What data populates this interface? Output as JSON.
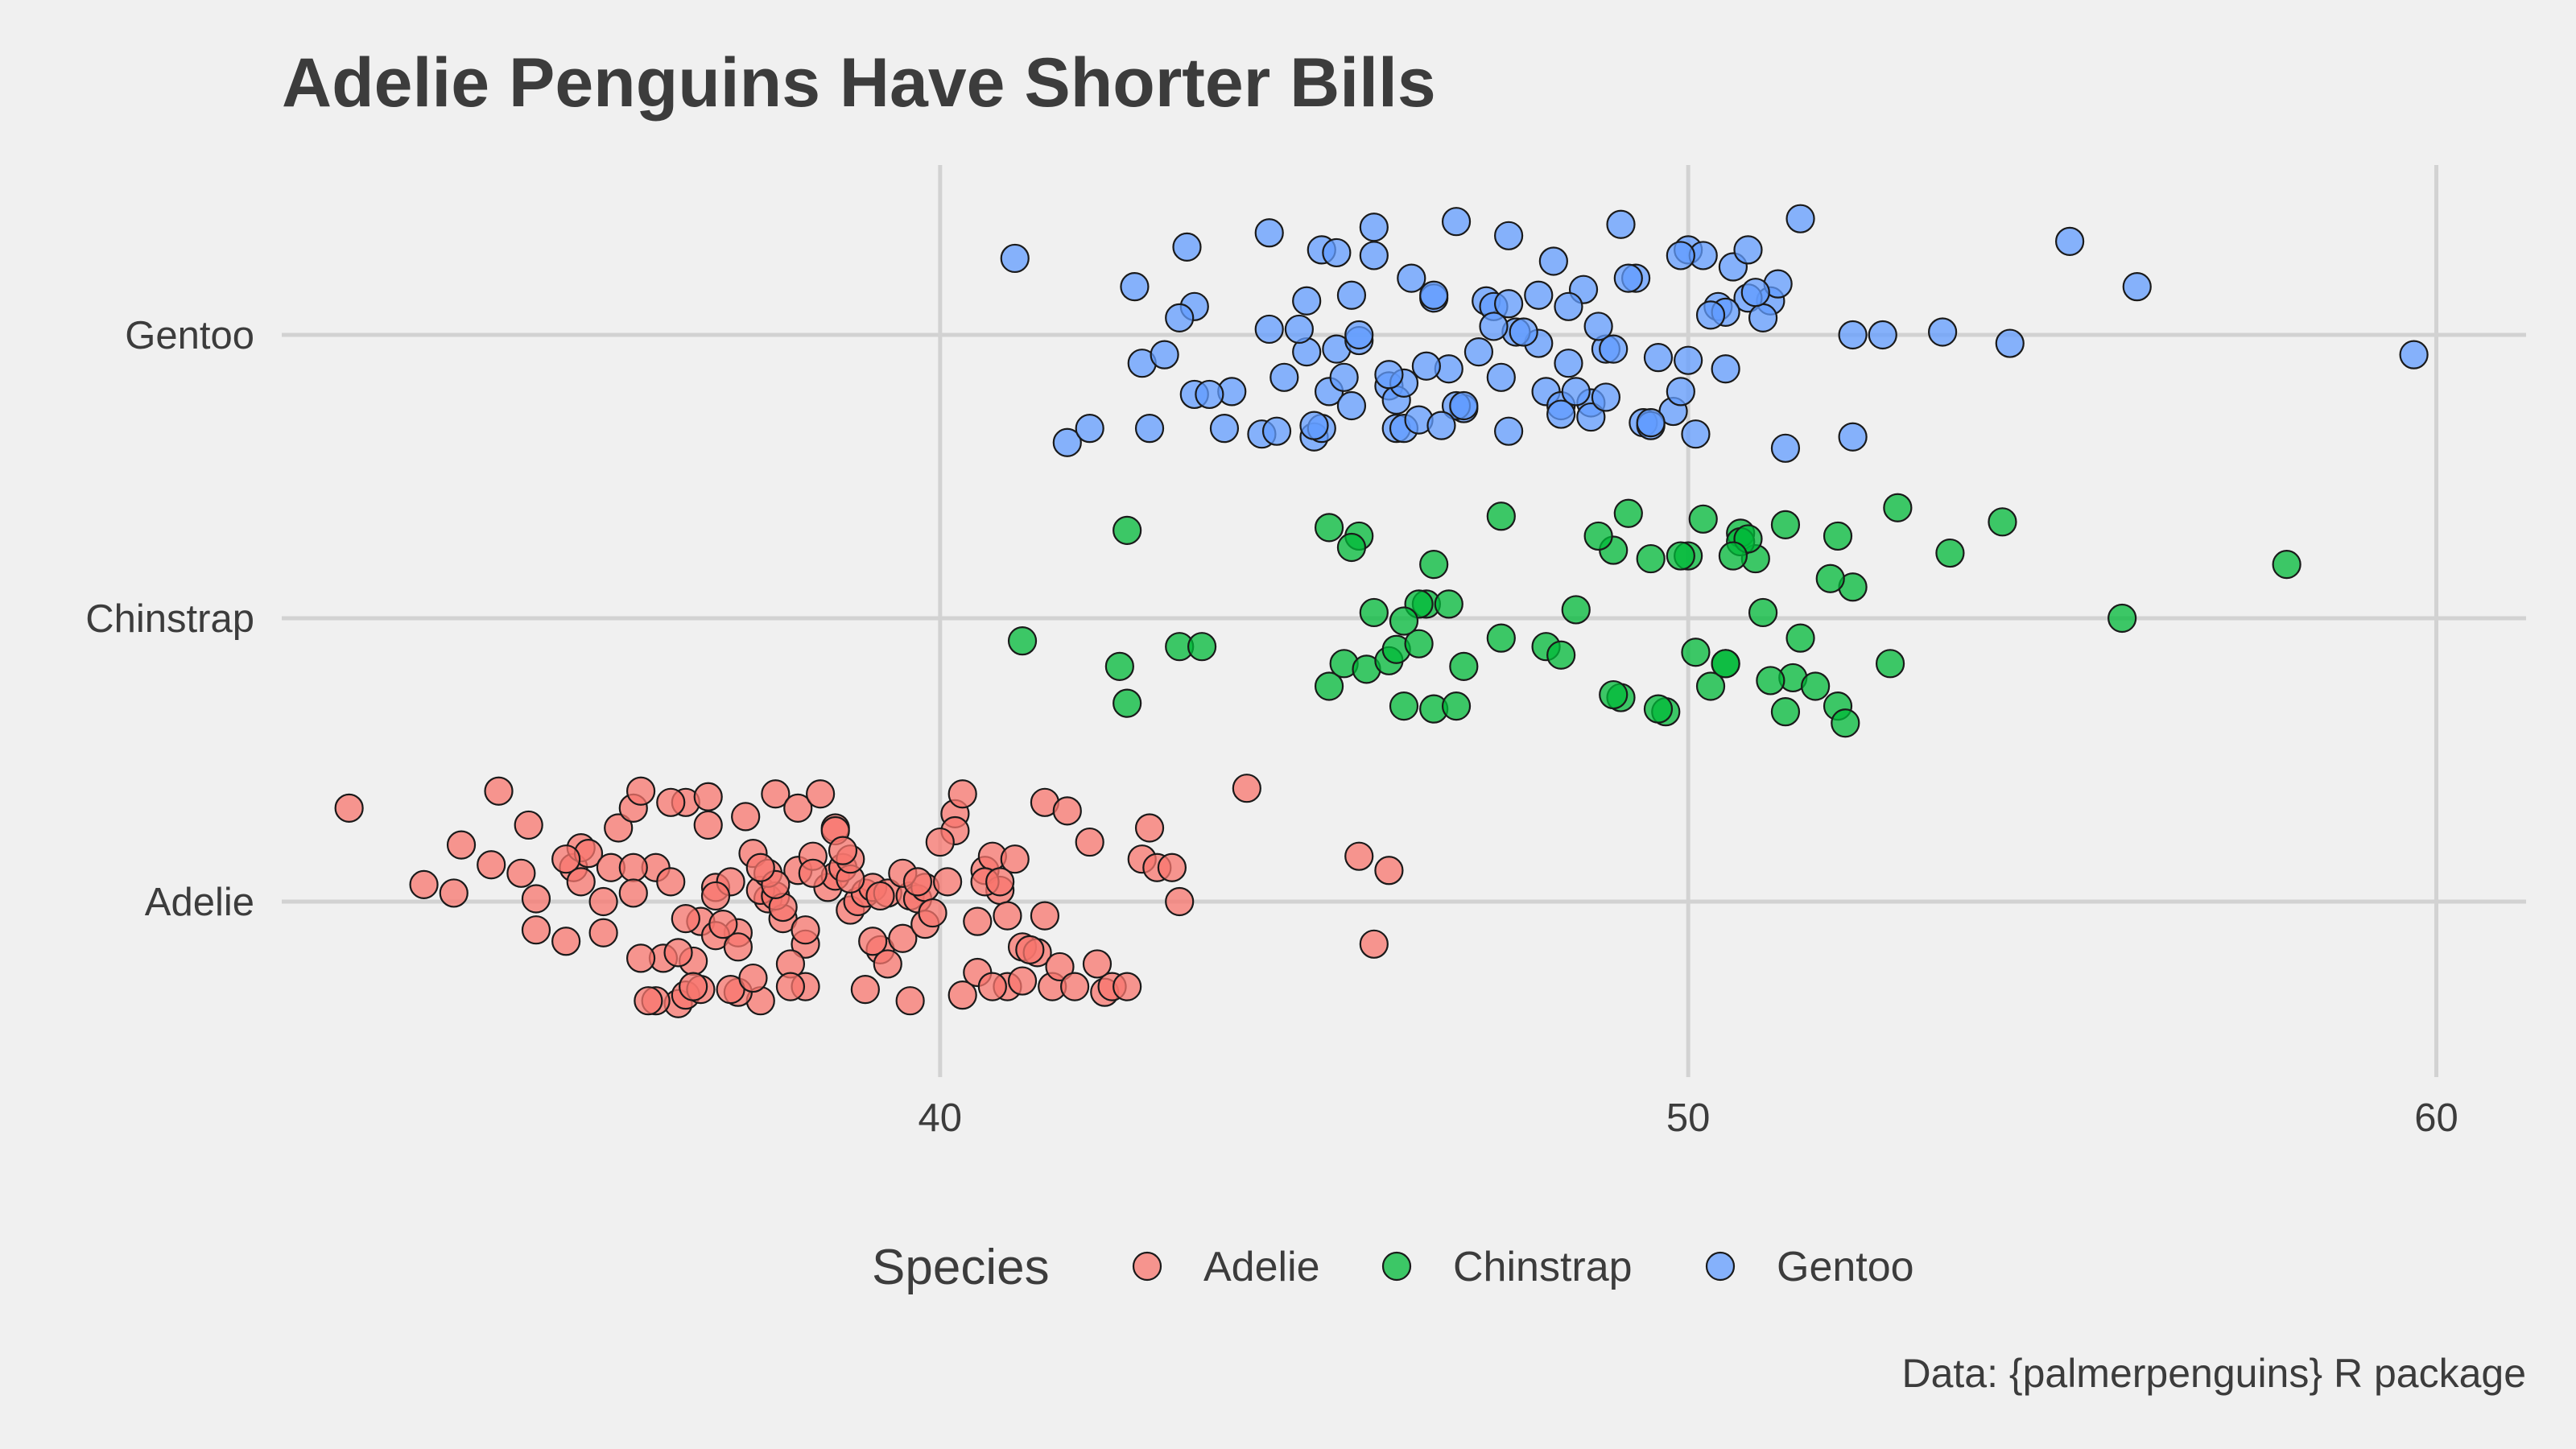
{
  "chart_data": {
    "type": "scatter",
    "title": "Adelie Penguins Have Shorter Bills",
    "caption": "Data: {palmerpenguins} R package",
    "xlabel": "",
    "ylabel": "",
    "xlim": [
      31.2,
      61.2
    ],
    "x_ticks": [
      40,
      50,
      60
    ],
    "categories": [
      "Adelie",
      "Chinstrap",
      "Gentoo"
    ],
    "grid": true,
    "legend": {
      "title": "Species",
      "position": "bottom",
      "entries": [
        "Adelie",
        "Chinstrap",
        "Gentoo"
      ]
    },
    "series": [
      {
        "name": "Adelie",
        "color": "#f8766d",
        "values": [
          32.1,
          33.1,
          33.5,
          34.0,
          34.1,
          34.4,
          34.5,
          34.6,
          35.0,
          35.1,
          35.2,
          35.3,
          35.5,
          35.6,
          35.7,
          35.9,
          36.0,
          36.2,
          36.4,
          36.5,
          36.6,
          36.7,
          36.8,
          36.9,
          37.0,
          37.2,
          37.3,
          37.5,
          37.6,
          37.7,
          37.8,
          37.9,
          38.1,
          38.2,
          38.3,
          38.5,
          38.6,
          38.7,
          38.8,
          38.9,
          39.0,
          39.1,
          39.2,
          39.3,
          39.5,
          39.6,
          39.7,
          39.8,
          40.1,
          40.2,
          40.3,
          40.5,
          40.6,
          40.7,
          40.8,
          40.9,
          41.0,
          41.1,
          41.3,
          41.4,
          41.5,
          41.6,
          41.8,
          42.0,
          42.2,
          42.3,
          42.5,
          42.7,
          42.9,
          43.1,
          43.2,
          44.1,
          45.6,
          45.8,
          46.0,
          33.6,
          34.6,
          35.0,
          35.5,
          35.9,
          36.2,
          36.4,
          36.6,
          36.8,
          37.0,
          37.3,
          37.6,
          37.8,
          38.0,
          38.2,
          38.6,
          38.8,
          39.0,
          39.2,
          39.6,
          39.8,
          40.3,
          40.6,
          40.9,
          41.1,
          42.1,
          42.8,
          35.9,
          36.6,
          37.2,
          37.7,
          38.1,
          38.6,
          39.5,
          40.2,
          40.8,
          41.4,
          36.3,
          37.0,
          37.5,
          38.0,
          38.8,
          39.7,
          40.5,
          36.0,
          36.7,
          37.3,
          37.9,
          39.1,
          40.0,
          41.2,
          36.5,
          37.4,
          38.4,
          39.3,
          40.7,
          37.1,
          38.3,
          39.9,
          37.8,
          36.9,
          38.7,
          38.2,
          37.6,
          41.7,
          35.2,
          36.1
        ],
        "jitter": [
          0.33,
          0.06,
          0.03,
          0.13,
          0.39,
          0.1,
          0.27,
          0.01,
          -0.14,
          0.12,
          0.19,
          0.17,
          -0.11,
          0.12,
          0.26,
          0.33,
          0.39,
          0.12,
          0.07,
          -0.36,
          0.35,
          -0.21,
          -0.07,
          0.37,
          0.05,
          0.07,
          -0.11,
          0.17,
          -0.35,
          0.01,
          0.38,
          -0.06,
          0.11,
          -0.15,
          0.16,
          0.05,
          0.09,
          0.12,
          -0.03,
          0.0,
          0.03,
          0.05,
          -0.17,
          0.03,
          -0.13,
          0.02,
          0.01,
          0.05,
          0.07,
          0.31,
          0.38,
          -0.07,
          0.11,
          0.16,
          0.04,
          -0.05,
          0.15,
          -0.16,
          -0.18,
          0.35,
          -0.3,
          -0.23,
          -0.3,
          0.21,
          -0.32,
          -0.3,
          -0.3,
          0.15,
          0.12,
          0.12,
          0.0,
          0.4,
          0.16,
          -0.15,
          0.11,
          0.2,
          -0.1,
          0.15,
          0.0,
          0.12,
          -0.35,
          0.35,
          -0.33,
          -0.31,
          0.02,
          -0.32,
          0.04,
          0.02,
          -0.22,
          -0.3,
          0.26,
          0.08,
          -0.31,
          0.02,
          -0.35,
          -0.08,
          -0.33,
          0.07,
          -0.3,
          -0.28,
          -0.22,
          0.26,
          0.03,
          -0.06,
          -0.31,
          0.1,
          0.33,
          0.25,
          0.1,
          0.25,
          0.07,
          -0.05,
          -0.2,
          -0.12,
          -0.27,
          -0.3,
          0.15,
          0.07,
          -0.25,
          -0.2,
          -0.3,
          -0.16,
          -0.02,
          -0.14,
          0.21,
          -0.17,
          -0.18,
          0.3,
          0.38,
          -0.22,
          -0.3,
          -0.08,
          0.1,
          -0.04,
          0.06,
          0.27,
          0.18,
          -0.1,
          0.12,
          0.32,
          0.07,
          -0.35,
          -0.32,
          0.05
        ]
      },
      {
        "name": "Chinstrap",
        "color": "#00ba38",
        "values": [
          42.5,
          45.2,
          45.6,
          47.5,
          49.2,
          50.2,
          50.7,
          51.3,
          52.0,
          52.8,
          54.2,
          58.0,
          42.4,
          42.5,
          43.2,
          43.5,
          45.2,
          45.4,
          45.7,
          46.0,
          46.1,
          46.4,
          46.5,
          46.6,
          46.8,
          47.0,
          48.1,
          48.5,
          49.0,
          49.5,
          49.7,
          50.0,
          50.5,
          50.9,
          51.0,
          51.4,
          51.5,
          52.0,
          52.2,
          52.7,
          53.5,
          55.8,
          41.1,
          45.5,
          46.2,
          46.6,
          47.5,
          48.3,
          49.1,
          49.9,
          50.3,
          50.7,
          51.3,
          51.9,
          52.1,
          45.8,
          46.4,
          46.9,
          49.6,
          50.8,
          51.7,
          49.0,
          50.1,
          48.8,
          50.5,
          46.2,
          51.1,
          50.6
        ],
        "jitter": [
          0.31,
          0.32,
          0.29,
          0.36,
          0.37,
          0.35,
          0.3,
          0.33,
          0.29,
          0.39,
          0.34,
          0.19,
          -0.17,
          -0.3,
          -0.1,
          -0.1,
          -0.24,
          -0.16,
          -0.18,
          -0.15,
          -0.11,
          -0.09,
          0.05,
          0.19,
          0.05,
          -0.17,
          -0.1,
          0.03,
          0.24,
          0.21,
          -0.33,
          0.22,
          -0.16,
          0.21,
          0.02,
          -0.21,
          -0.07,
          -0.31,
          0.11,
          -0.16,
          0.23,
          0.0,
          -0.08,
          0.25,
          -0.31,
          -0.32,
          -0.07,
          -0.13,
          -0.28,
          0.22,
          -0.24,
          0.27,
          -0.33,
          0.14,
          -0.37,
          0.02,
          0.05,
          -0.31,
          -0.32,
          0.28,
          -0.24,
          -0.27,
          -0.12,
          0.29,
          -0.16,
          -0.01,
          -0.22,
          0.22
        ]
      },
      {
        "name": "Gentoo",
        "color": "#619cff",
        "values": [
          41.0,
          42.6,
          43.3,
          44.4,
          45.1,
          45.8,
          46.9,
          47.6,
          48.2,
          49.1,
          50.0,
          51.5,
          55.1,
          56.0,
          43.4,
          44.9,
          45.5,
          46.3,
          47.3,
          48.6,
          49.3,
          50.4,
          51.1,
          43.2,
          44.4,
          45.3,
          46.0,
          46.8,
          47.5,
          48.4,
          49.6,
          50.5,
          52.2,
          52.6,
          53.4,
          54.3,
          59.7,
          42.7,
          43.0,
          44.9,
          45.6,
          46.5,
          47.2,
          48.0,
          48.9,
          50.0,
          50.8,
          43.4,
          44.6,
          45.2,
          46.1,
          47.0,
          48.1,
          48.7,
          49.8,
          41.7,
          42.0,
          42.8,
          43.8,
          44.3,
          45.0,
          45.5,
          46.1,
          46.9,
          47.6,
          48.3,
          49.4,
          50.1,
          51.3,
          52.2,
          43.9,
          45.1,
          46.2,
          47.4,
          48.8,
          49.9,
          51.0,
          45.6,
          47.0,
          48.5,
          50.5,
          46.6,
          48.0,
          49.2,
          50.6,
          44.8,
          45.4,
          46.4,
          47.7,
          49.0,
          51.2,
          45.8,
          47.8,
          50.2,
          46.2,
          48.7,
          50.8,
          45.3,
          49.5,
          44.5,
          47.4,
          48.3,
          46.7,
          49.5,
          45.0,
          47.6,
          50.9,
          46.6,
          48.9,
          43.6,
          50.3,
          49.9,
          46.0,
          48.4
        ],
        "jitter": [
          0.27,
          0.17,
          0.31,
          0.36,
          0.3,
          0.38,
          0.4,
          0.35,
          0.26,
          0.39,
          0.3,
          0.41,
          0.33,
          0.17,
          0.1,
          0.12,
          0.14,
          0.2,
          0.12,
          0.16,
          0.2,
          0.1,
          0.12,
          0.06,
          0.02,
          -0.05,
          -0.18,
          -0.12,
          -0.15,
          -0.1,
          -0.08,
          -0.12,
          0.0,
          0.0,
          0.01,
          -0.03,
          -0.07,
          -0.1,
          -0.07,
          -0.06,
          -0.02,
          -0.11,
          -0.06,
          -0.03,
          -0.05,
          -0.09,
          0.13,
          -0.21,
          -0.15,
          -0.2,
          -0.23,
          -0.26,
          -0.2,
          -0.24,
          -0.27,
          -0.38,
          -0.33,
          -0.33,
          -0.33,
          -0.35,
          -0.36,
          -0.25,
          -0.33,
          -0.25,
          -0.34,
          -0.25,
          -0.31,
          -0.35,
          -0.4,
          -0.36,
          -0.2,
          -0.33,
          -0.33,
          0.1,
          0.03,
          -0.2,
          0.06,
          0.0,
          -0.25,
          -0.2,
          0.08,
          0.13,
          0.14,
          0.2,
          0.24,
          0.02,
          -0.15,
          -0.3,
          0.01,
          -0.05,
          0.18,
          0.28,
          0.01,
          0.28,
          -0.17,
          -0.29,
          0.3,
          0.29,
          -0.32,
          -0.34,
          0.03,
          -0.28,
          -0.32,
          -0.31,
          -0.32,
          0.11,
          0.15,
          0.14,
          -0.22,
          -0.21,
          0.07,
          0.28,
          -0.14,
          0.1
        ]
      }
    ]
  }
}
